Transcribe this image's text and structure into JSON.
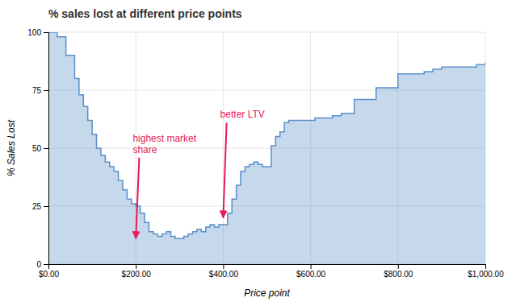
{
  "chart_data": {
    "type": "step",
    "title": "% sales lost at different price points",
    "x_label": "Price point",
    "y_label": "% Sales Lost",
    "color": "#5b8fc9",
    "x": [
      0,
      20,
      40,
      60,
      70,
      80,
      90,
      100,
      110,
      120,
      130,
      140,
      150,
      160,
      170,
      180,
      190,
      200,
      210,
      220,
      230,
      240,
      250,
      260,
      270,
      280,
      290,
      300,
      310,
      320,
      330,
      340,
      350,
      360,
      370,
      380,
      390,
      400,
      410,
      420,
      430,
      440,
      450,
      460,
      470,
      480,
      490,
      500,
      510,
      520,
      530,
      540,
      550,
      560,
      580,
      590,
      600,
      610,
      620,
      630,
      640,
      650,
      660,
      670,
      680,
      690,
      700,
      710,
      720,
      730,
      740,
      750,
      760,
      770,
      780,
      790,
      800,
      810,
      820,
      830,
      840,
      860,
      880,
      900,
      920,
      940,
      960,
      980,
      1000
    ],
    "values": [
      100,
      98,
      90,
      80,
      73,
      68,
      62,
      56,
      50,
      47,
      44,
      42,
      40,
      36,
      32,
      28,
      26,
      25,
      22,
      18,
      14,
      13,
      12,
      13,
      14,
      12,
      11,
      11,
      12,
      13,
      14,
      15,
      14,
      16,
      17,
      16,
      17,
      17,
      22,
      28,
      34,
      40,
      42,
      43,
      44,
      43,
      42,
      42,
      51,
      55,
      57,
      61,
      62,
      62,
      62,
      62,
      62,
      63,
      63,
      63,
      63,
      64,
      64,
      65,
      65,
      65,
      71,
      71,
      71,
      71,
      71,
      76,
      76,
      76,
      76,
      76,
      82,
      82,
      82,
      82,
      82,
      83,
      84,
      85,
      85,
      85,
      85,
      86,
      87
    ],
    "xlim": [
      0,
      1000
    ],
    "xticks": [
      {
        "value": 0,
        "label": "$0.00"
      },
      {
        "value": 200,
        "label": "$200.00"
      },
      {
        "value": 400,
        "label": "$400.00"
      },
      {
        "value": 600,
        "label": "$600.00"
      },
      {
        "value": 800,
        "label": "$800.00"
      },
      {
        "value": 1000,
        "label": "$1,000.00"
      }
    ],
    "ylim": [
      0,
      100
    ],
    "yticks": [
      0,
      25,
      50,
      75,
      100
    ],
    "grid": true,
    "annotations": [
      {
        "text": "highest market\nshare",
        "x": 200,
        "y": 11,
        "text_x": 193,
        "text_y": 47,
        "color": "#e8195a"
      },
      {
        "text": "better LTV",
        "x": 400,
        "y": 20,
        "text_x": 393,
        "text_y": 62,
        "color": "#e8195a"
      }
    ]
  }
}
